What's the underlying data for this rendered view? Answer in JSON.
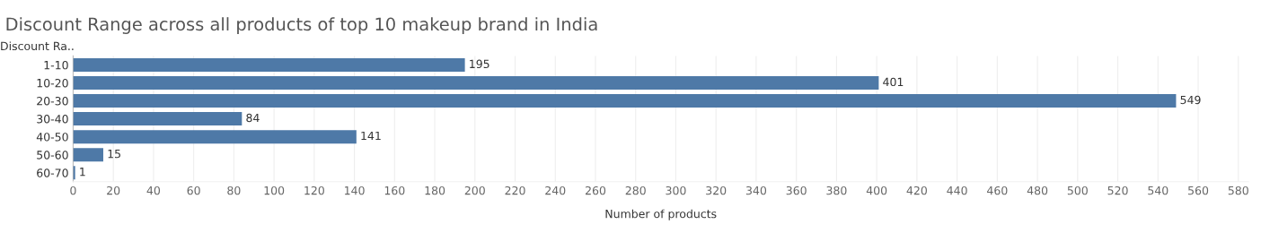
{
  "chart_data": {
    "type": "bar",
    "orientation": "horizontal",
    "title": "Discount Range across all products of top 10 makeup brand in India",
    "ylabel": "Discount Ra..",
    "xlabel": "Number of products",
    "categories": [
      "1-10",
      "10-20",
      "20-30",
      "30-40",
      "40-50",
      "50-60",
      "60-70"
    ],
    "values": [
      195,
      401,
      549,
      84,
      141,
      15,
      1
    ],
    "color": "#4e79a7",
    "xlim": [
      0,
      585
    ],
    "xticks": [
      0,
      20,
      40,
      60,
      80,
      100,
      120,
      140,
      160,
      180,
      200,
      220,
      240,
      260,
      280,
      300,
      320,
      340,
      360,
      380,
      400,
      420,
      440,
      460,
      480,
      500,
      520,
      540,
      560,
      580
    ],
    "grid": "x",
    "data_labels": true
  }
}
